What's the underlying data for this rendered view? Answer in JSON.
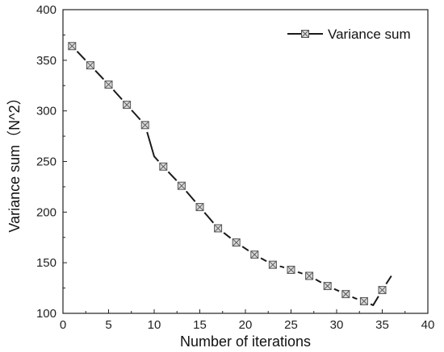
{
  "chart_data": {
    "type": "line",
    "title": "",
    "xlabel": "Number of iterations",
    "ylabel": "Variance sum（N^2）",
    "xlim": [
      0,
      40
    ],
    "ylim": [
      100,
      400
    ],
    "xticks": [
      0,
      5,
      10,
      15,
      20,
      25,
      30,
      35,
      40
    ],
    "yticks": [
      100,
      150,
      200,
      250,
      300,
      350,
      400
    ],
    "grid": false,
    "legend_position": "top-right",
    "colors": {
      "line": "#1a1a1a",
      "marker_fill": "#d9d9d9",
      "marker_stroke": "#555555",
      "axis": "#222222"
    },
    "series": [
      {
        "name": "Variance sum",
        "marker": "boxed-x",
        "line": [
          [
            1,
            364
          ],
          [
            3,
            345
          ],
          [
            5,
            326
          ],
          [
            7,
            306
          ],
          [
            9,
            286
          ],
          [
            10,
            255
          ],
          [
            11,
            245
          ],
          [
            13,
            226
          ],
          [
            15,
            205
          ],
          [
            17,
            184
          ],
          [
            19,
            170
          ],
          [
            21,
            158
          ],
          [
            23,
            148
          ],
          [
            24,
            146
          ],
          [
            25,
            143
          ],
          [
            26,
            140
          ],
          [
            27,
            137
          ],
          [
            28,
            132
          ],
          [
            29,
            127
          ],
          [
            30,
            123
          ],
          [
            31,
            119
          ],
          [
            32,
            115
          ],
          [
            33,
            112
          ],
          [
            34,
            108
          ],
          [
            35,
            123
          ],
          [
            36,
            137
          ]
        ],
        "markers": [
          [
            1,
            364
          ],
          [
            3,
            345
          ],
          [
            5,
            326
          ],
          [
            7,
            306
          ],
          [
            9,
            286
          ],
          [
            11,
            245
          ],
          [
            13,
            226
          ],
          [
            15,
            205
          ],
          [
            17,
            184
          ],
          [
            19,
            170
          ],
          [
            21,
            158
          ],
          [
            23,
            148
          ],
          [
            25,
            143
          ],
          [
            27,
            137
          ],
          [
            29,
            127
          ],
          [
            31,
            119
          ],
          [
            33,
            112
          ],
          [
            35,
            123
          ]
        ]
      }
    ]
  }
}
